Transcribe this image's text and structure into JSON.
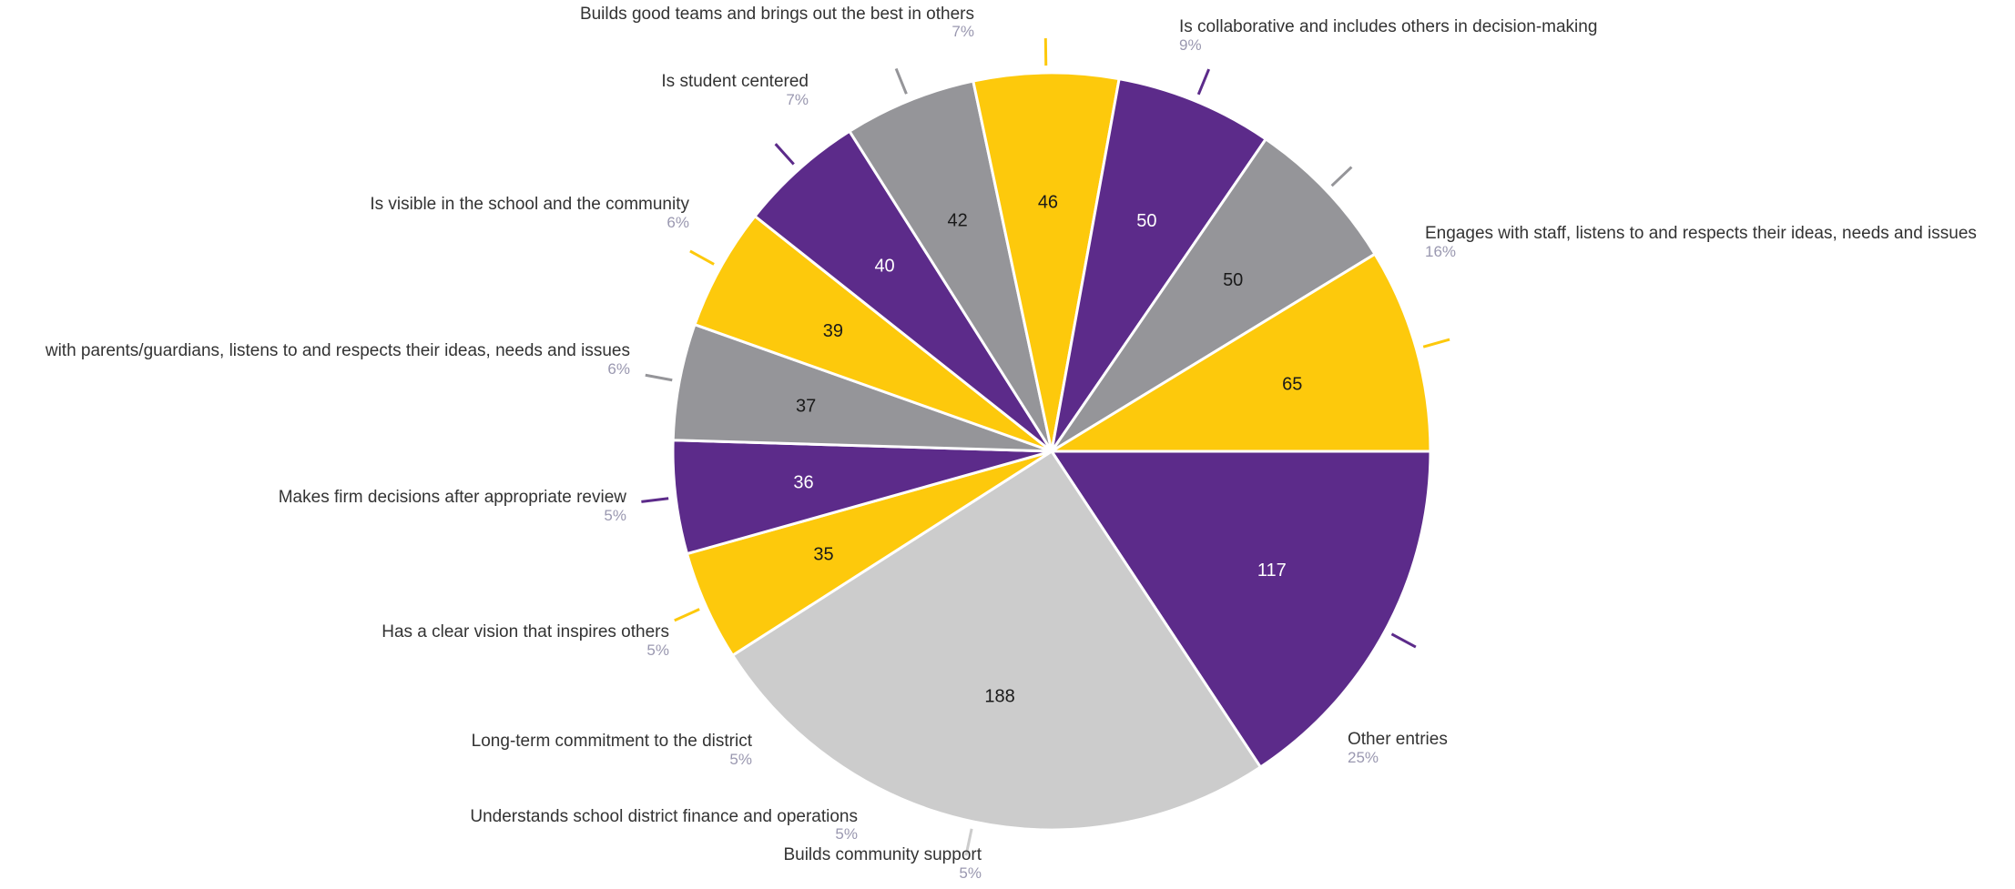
{
  "chart_data": {
    "type": "pie",
    "categories": [
      "Engages with staff, listens to and respects their ideas, needs and issues",
      "Other entries",
      "Builds community support",
      "Understands school district finance and operations",
      "Long-term commitment to the district",
      "Has a clear vision that inspires others",
      "Makes firm decisions after appropriate review",
      "with parents/guardians, listens to and respects their ideas, needs and issues",
      "Is visible in the school and the community",
      "Is student centered",
      "Builds good teams and brings out the best in others",
      "Is collaborative and includes others in decision-making"
    ],
    "values": [
      117,
      188,
      35,
      36,
      37,
      39,
      40,
      42,
      46,
      50,
      50,
      65
    ],
    "value_labels": [
      "117",
      "188",
      "35",
      "36",
      "37",
      "39",
      "40",
      "42",
      "46",
      "50",
      "50",
      "65"
    ],
    "percent_labels": [
      "16%",
      "25%",
      "5%",
      "5%",
      "5%",
      "5%",
      "5%",
      "6%",
      "6%",
      "7%",
      "7%",
      "9%"
    ],
    "slice_colors": [
      "#5c2b8a",
      "#cccccc",
      "#fdc90c",
      "#5c2b8a",
      "#959599",
      "#fdc90c",
      "#5c2b8a",
      "#959599",
      "#fdc90c",
      "#5c2b8a",
      "#959599",
      "#fdc90c"
    ],
    "value_label_colors": [
      "#ffffff",
      "#1a1a1a",
      "#1a1a1a",
      "#ffffff",
      "#1a1a1a",
      "#1a1a1a",
      "#ffffff",
      "#1a1a1a",
      "#1a1a1a",
      "#ffffff",
      "#1a1a1a",
      "#1a1a1a"
    ],
    "start_angle_deg": 90,
    "direction": "clockwise",
    "legend": "none (callout labels with leader lines)"
  }
}
